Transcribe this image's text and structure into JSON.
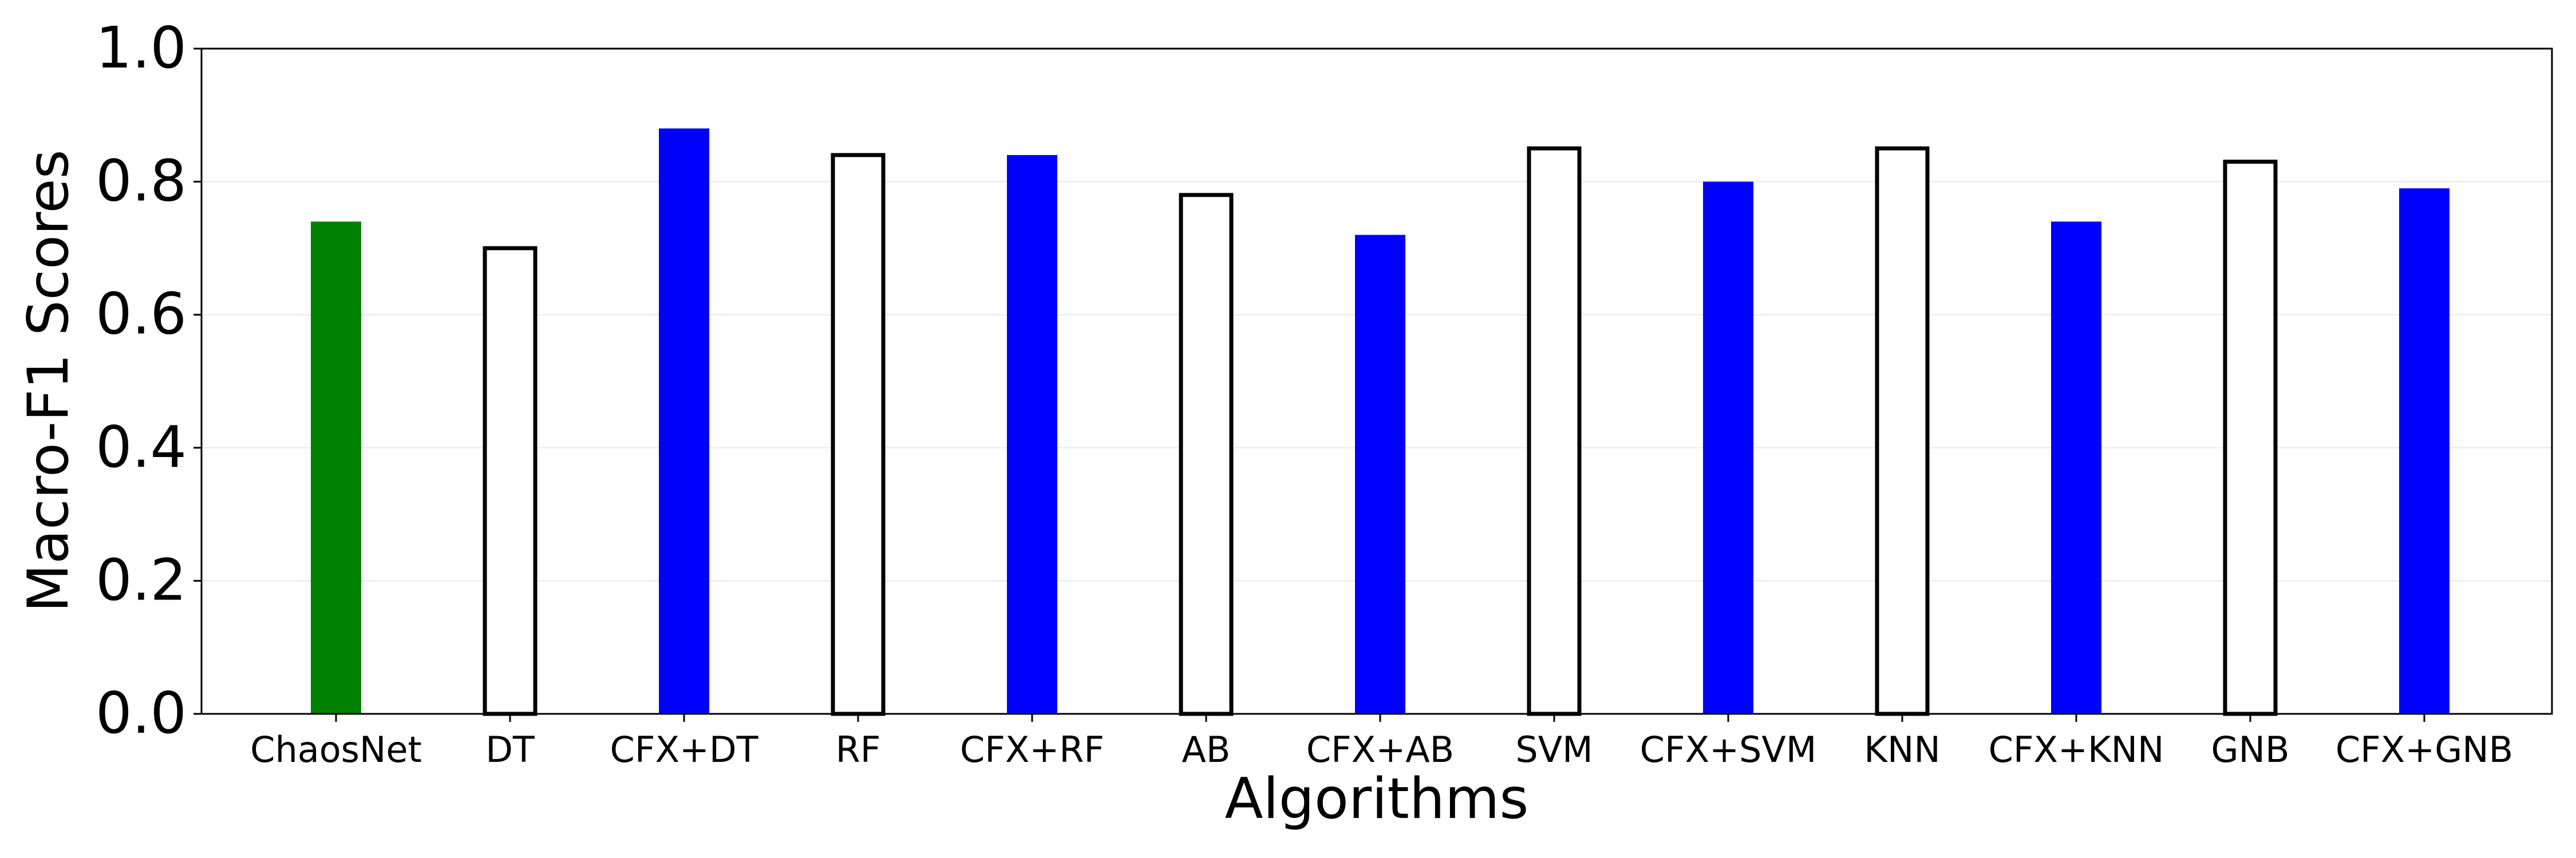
{
  "chart_data": {
    "type": "bar",
    "title": "",
    "xlabel": "Algorithms",
    "ylabel": "Macro-F1 Scores",
    "ylim": [
      0,
      1.0
    ],
    "yticks": [
      "0.0",
      "0.2",
      "0.4",
      "0.6",
      "0.8",
      "1.0"
    ],
    "grid": "horizontal, faint",
    "legend": "none",
    "categories": [
      "ChaosNet",
      "DT",
      "CFX+DT",
      "RF",
      "CFX+RF",
      "AB",
      "CFX+AB",
      "SVM",
      "CFX+SVM",
      "KNN",
      "CFX+KNN",
      "GNB",
      "CFX+GNB"
    ],
    "values": [
      0.74,
      0.7,
      0.88,
      0.84,
      0.84,
      0.78,
      0.72,
      0.85,
      0.8,
      0.85,
      0.74,
      0.83,
      0.79
    ],
    "bar_styles": [
      "green-filled",
      "outline",
      "blue-filled",
      "outline",
      "blue-filled",
      "outline",
      "blue-filled",
      "outline",
      "blue-filled",
      "outline",
      "blue-filled",
      "outline",
      "blue-filled"
    ],
    "colors": {
      "green-filled": "#008000",
      "blue-filled": "#0000ff",
      "outline_stroke": "#000000",
      "outline_fill": "#ffffff",
      "grid": "#e8e8e8"
    }
  }
}
